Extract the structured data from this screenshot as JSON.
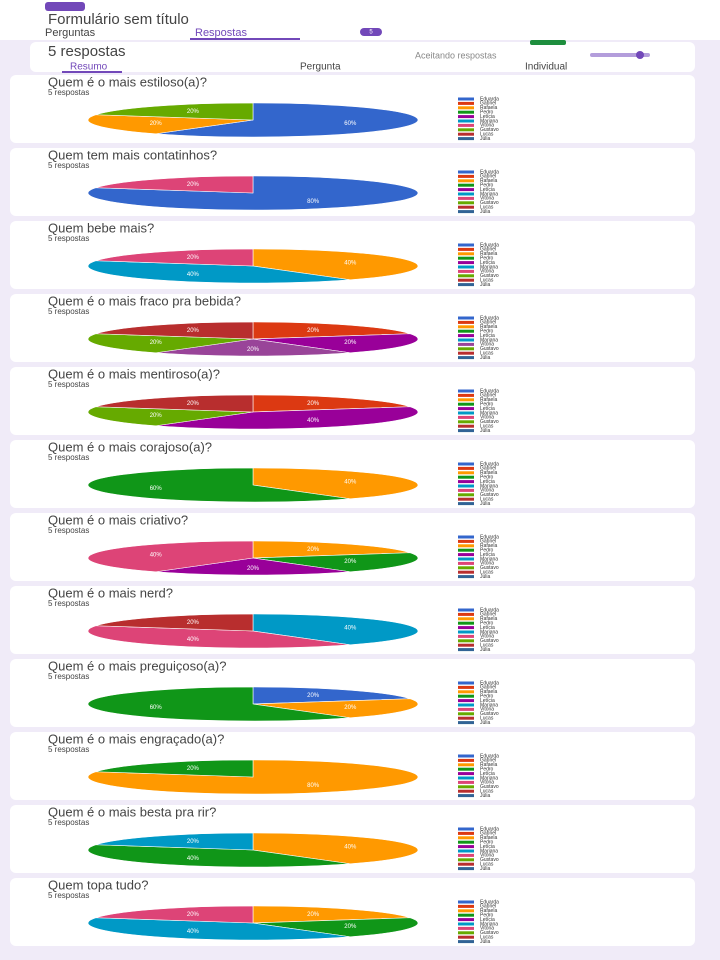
{
  "header": {
    "form_title": "Formulário sem título",
    "tabs": [
      "Perguntas",
      "Respostas"
    ],
    "badge": "5",
    "responses_heading": "5 respostas",
    "accepting": "Aceitando respostas",
    "subtabs": [
      "Resumo",
      "Pergunta",
      "Individual"
    ]
  },
  "chart_data": [
    {
      "type": "pie",
      "title": "Quem é o mais estiloso(a)?",
      "subtitle": "5 respostas",
      "categories": [
        "Eduarda",
        "Gabriel",
        "Rafaela",
        "Pedro",
        "Letícia",
        "Mariana",
        "Vitória",
        "Gustavo",
        "Lucas",
        "Júlia"
      ],
      "colors": [
        "#3366cc",
        "#dc3912",
        "#ff9900",
        "#109618",
        "#990099",
        "#0099c6",
        "#dd4477",
        "#66aa00",
        "#b82e2e",
        "#316395"
      ],
      "values": [
        60,
        0,
        20,
        0,
        0,
        0,
        0,
        20,
        0,
        0
      ],
      "value_labels": [
        "60%",
        null,
        "20%",
        null,
        null,
        null,
        null,
        "20%",
        null,
        null
      ]
    },
    {
      "type": "pie",
      "title": "Quem tem mais contatinhos?",
      "subtitle": "5 respostas",
      "categories": [
        "Eduarda",
        "Gabriel",
        "Rafaela",
        "Pedro",
        "Letícia",
        "Mariana",
        "Vitória",
        "Gustavo",
        "Lucas",
        "Júlia"
      ],
      "colors": [
        "#3366cc",
        "#dc3912",
        "#ff9900",
        "#109618",
        "#990099",
        "#0099c6",
        "#dd4477",
        "#66aa00",
        "#b82e2e",
        "#316395"
      ],
      "values": [
        80,
        0,
        0,
        0,
        0,
        0,
        20,
        0,
        0,
        0
      ],
      "value_labels": [
        "80%",
        null,
        null,
        null,
        null,
        null,
        "20%",
        null,
        null,
        null
      ]
    },
    {
      "type": "pie",
      "title": "Quem bebe mais?",
      "subtitle": "5 respostas",
      "categories": [
        "Eduarda",
        "Gabriel",
        "Rafaela",
        "Pedro",
        "Letícia",
        "Mariana",
        "Vitória",
        "Gustavo",
        "Lucas",
        "Júlia"
      ],
      "colors": [
        "#3366cc",
        "#dc3912",
        "#ff9900",
        "#109618",
        "#990099",
        "#0099c6",
        "#dd4477",
        "#66aa00",
        "#b82e2e",
        "#316395"
      ],
      "values": [
        0,
        0,
        40,
        0,
        0,
        40,
        20,
        0,
        0,
        0
      ],
      "value_labels": [
        null,
        null,
        "40%",
        null,
        null,
        "40%",
        "20%",
        null,
        null,
        null
      ]
    },
    {
      "type": "pie",
      "title": "Quem é o mais fraco pra bebida?",
      "subtitle": "5 respostas",
      "categories": [
        "Eduarda",
        "Gabriel",
        "Rafaela",
        "Pedro",
        "Letícia",
        "Mariana",
        "Vitória",
        "Gustavo",
        "Lucas",
        "Júlia"
      ],
      "colors": [
        "#3366cc",
        "#dc3912",
        "#ff9900",
        "#109618",
        "#990099",
        "#0099c6",
        "#994499",
        "#66aa00",
        "#b82e2e",
        "#316395"
      ],
      "values": [
        0,
        20,
        0,
        0,
        20,
        0,
        20,
        20,
        20,
        0
      ],
      "value_labels": [
        null,
        "20%",
        null,
        null,
        "20%",
        null,
        "20%",
        "20%",
        "20%",
        null
      ]
    },
    {
      "type": "pie",
      "title": "Quem é o mais mentiroso(a)?",
      "subtitle": "5 respostas",
      "categories": [
        "Eduarda",
        "Gabriel",
        "Rafaela",
        "Pedro",
        "Letícia",
        "Mariana",
        "Vitória",
        "Gustavo",
        "Lucas",
        "Júlia"
      ],
      "colors": [
        "#3366cc",
        "#dc3912",
        "#ff9900",
        "#109618",
        "#990099",
        "#0099c6",
        "#dd4477",
        "#66aa00",
        "#b82e2e",
        "#316395"
      ],
      "values": [
        0,
        20,
        0,
        0,
        40,
        0,
        0,
        20,
        20,
        0
      ],
      "value_labels": [
        null,
        "20%",
        null,
        null,
        "40%",
        null,
        null,
        "20%",
        "20%",
        null
      ]
    },
    {
      "type": "pie",
      "title": "Quem é o mais corajoso(a)?",
      "subtitle": "5 respostas",
      "categories": [
        "Eduarda",
        "Gabriel",
        "Rafaela",
        "Pedro",
        "Letícia",
        "Mariana",
        "Vitória",
        "Gustavo",
        "Lucas",
        "Júlia"
      ],
      "colors": [
        "#3366cc",
        "#dc3912",
        "#ff9900",
        "#109618",
        "#990099",
        "#0099c6",
        "#dd4477",
        "#66aa00",
        "#b82e2e",
        "#316395"
      ],
      "values": [
        0,
        0,
        40,
        60,
        0,
        0,
        0,
        0,
        0,
        0
      ],
      "value_labels": [
        null,
        null,
        "40%",
        "60%",
        null,
        null,
        null,
        null,
        null,
        null
      ]
    },
    {
      "type": "pie",
      "title": "Quem é o mais criativo?",
      "subtitle": "5 respostas",
      "categories": [
        "Eduarda",
        "Gabriel",
        "Rafaela",
        "Pedro",
        "Letícia",
        "Mariana",
        "Vitória",
        "Gustavo",
        "Lucas",
        "Júlia"
      ],
      "colors": [
        "#3366cc",
        "#dc3912",
        "#ff9900",
        "#109618",
        "#990099",
        "#0099c6",
        "#dd4477",
        "#66aa00",
        "#b82e2e",
        "#316395"
      ],
      "values": [
        0,
        0,
        20,
        20,
        20,
        0,
        40,
        0,
        0,
        0
      ],
      "value_labels": [
        null,
        null,
        "20%",
        "20%",
        "20%",
        null,
        "40%",
        null,
        null,
        null
      ]
    },
    {
      "type": "pie",
      "title": "Quem é o mais nerd?",
      "subtitle": "5 respostas",
      "categories": [
        "Eduarda",
        "Gabriel",
        "Rafaela",
        "Pedro",
        "Letícia",
        "Mariana",
        "Vitória",
        "Gustavo",
        "Lucas",
        "Júlia"
      ],
      "colors": [
        "#3366cc",
        "#dc3912",
        "#ff9900",
        "#109618",
        "#990099",
        "#0099c6",
        "#dd4477",
        "#66aa00",
        "#b82e2e",
        "#316395"
      ],
      "values": [
        0,
        0,
        0,
        0,
        0,
        40,
        40,
        0,
        20,
        0
      ],
      "value_labels": [
        null,
        null,
        null,
        null,
        null,
        "40%",
        "40%",
        null,
        "20%",
        null
      ]
    },
    {
      "type": "pie",
      "title": "Quem é o mais preguiçoso(a)?",
      "subtitle": "5 respostas",
      "categories": [
        "Eduarda",
        "Gabriel",
        "Rafaela",
        "Pedro",
        "Letícia",
        "Mariana",
        "Vitória",
        "Gustavo",
        "Lucas",
        "Júlia"
      ],
      "colors": [
        "#3366cc",
        "#dc3912",
        "#ff9900",
        "#109618",
        "#990099",
        "#0099c6",
        "#dd4477",
        "#66aa00",
        "#b82e2e",
        "#316395"
      ],
      "values": [
        20,
        0,
        20,
        60,
        0,
        0,
        0,
        0,
        0,
        0
      ],
      "value_labels": [
        "20%",
        null,
        "20%",
        "60%",
        null,
        null,
        null,
        null,
        null,
        null
      ]
    },
    {
      "type": "pie",
      "title": "Quem é o mais engraçado(a)?",
      "subtitle": "5 respostas",
      "categories": [
        "Eduarda",
        "Gabriel",
        "Rafaela",
        "Pedro",
        "Letícia",
        "Mariana",
        "Vitória",
        "Gustavo",
        "Lucas",
        "Júlia"
      ],
      "colors": [
        "#3366cc",
        "#dc3912",
        "#ff9900",
        "#109618",
        "#990099",
        "#0099c6",
        "#dd4477",
        "#66aa00",
        "#b82e2e",
        "#316395"
      ],
      "values": [
        0,
        0,
        80,
        20,
        0,
        0,
        0,
        0,
        0,
        0
      ],
      "value_labels": [
        null,
        null,
        "80%",
        "20%",
        null,
        null,
        null,
        null,
        null,
        null
      ]
    },
    {
      "type": "pie",
      "title": "Quem é o mais besta pra rir?",
      "subtitle": "5 respostas",
      "categories": [
        "Eduarda",
        "Gabriel",
        "Rafaela",
        "Pedro",
        "Letícia",
        "Mariana",
        "Vitória",
        "Gustavo",
        "Lucas",
        "Júlia"
      ],
      "colors": [
        "#3366cc",
        "#dc3912",
        "#ff9900",
        "#109618",
        "#990099",
        "#0099c6",
        "#dd4477",
        "#66aa00",
        "#b82e2e",
        "#316395"
      ],
      "values": [
        0,
        0,
        40,
        40,
        0,
        20,
        0,
        0,
        0,
        0
      ],
      "value_labels": [
        null,
        null,
        "40%",
        "40%",
        null,
        "20%",
        null,
        null,
        null,
        null
      ]
    },
    {
      "type": "pie",
      "title": "Quem topa tudo?",
      "subtitle": "5 respostas",
      "categories": [
        "Eduarda",
        "Gabriel",
        "Rafaela",
        "Pedro",
        "Letícia",
        "Mariana",
        "Vitória",
        "Gustavo",
        "Lucas",
        "Júlia"
      ],
      "colors": [
        "#3366cc",
        "#dc3912",
        "#ff9900",
        "#109618",
        "#990099",
        "#0099c6",
        "#dd4477",
        "#66aa00",
        "#b82e2e",
        "#316395"
      ],
      "values": [
        0,
        0,
        20,
        20,
        0,
        40,
        20,
        0,
        0,
        0
      ],
      "value_labels": [
        null,
        null,
        "20%",
        "20%",
        null,
        "40%",
        "20%",
        null,
        null,
        null
      ]
    }
  ]
}
